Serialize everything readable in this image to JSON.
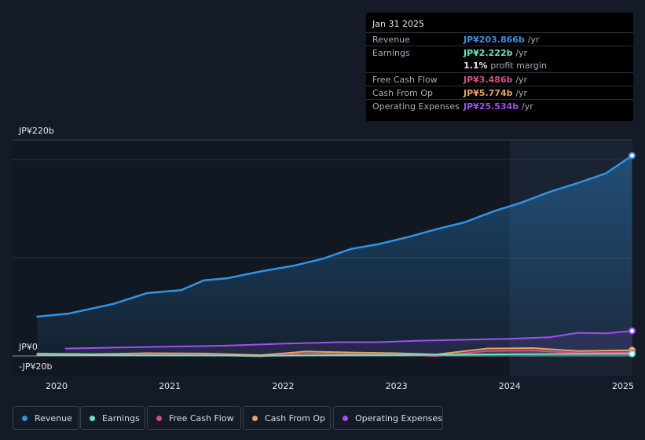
{
  "colors": {
    "revenue": "#2f94e6",
    "earnings": "#5ce8c9",
    "free_cash_flow": "#d24f86",
    "cash_from_op": "#e9a45c",
    "operating_expenses": "#a14ff0"
  },
  "tooltip": {
    "date": "Jan 31 2025",
    "rows": [
      {
        "label": "Revenue",
        "value": "JP¥203.866b",
        "unit": "/yr",
        "color": "#2f94e6"
      },
      {
        "label": "Earnings",
        "value": "JP¥2.222b",
        "unit": "/yr",
        "color": "#5ce8c9"
      },
      {
        "label": "",
        "value": "1.1%",
        "unit": "profit margin",
        "color": "#e6e8ec"
      },
      {
        "label": "Free Cash Flow",
        "value": "JP¥3.486b",
        "unit": "/yr",
        "color": "#d24f86"
      },
      {
        "label": "Cash From Op",
        "value": "JP¥5.774b",
        "unit": "/yr",
        "color": "#e9a45c"
      },
      {
        "label": "Operating Expenses",
        "value": "JP¥25.534b",
        "unit": "/yr",
        "color": "#a14ff0"
      }
    ]
  },
  "legend": [
    "Revenue",
    "Earnings",
    "Free Cash Flow",
    "Cash From Op",
    "Operating Expenses"
  ],
  "chart_data": {
    "type": "line",
    "title": "",
    "xlabel": "",
    "ylabel": "",
    "ylim": [
      -20,
      220
    ],
    "y_tick_labels": [
      "JP¥220b",
      "JP¥0",
      "-JP¥20b"
    ],
    "x_tick_labels": [
      "2020",
      "2021",
      "2022",
      "2023",
      "2024",
      "2025"
    ],
    "x_ticks": [
      2020.0,
      2021.0,
      2022.0,
      2023.0,
      2024.0,
      2025.0
    ],
    "highlight_from": 2024.0,
    "series": [
      {
        "name": "Revenue",
        "key": "revenue",
        "x": [
          2019.83,
          2020.1,
          2020.5,
          2020.8,
          2021.1,
          2021.3,
          2021.5,
          2021.8,
          2022.1,
          2022.35,
          2022.6,
          2022.85,
          2023.1,
          2023.35,
          2023.6,
          2023.85,
          2024.1,
          2024.35,
          2024.6,
          2024.85,
          2025.08
        ],
        "values": [
          40,
          43,
          53,
          64,
          67,
          77,
          79,
          86,
          92,
          99,
          109,
          114,
          121,
          129,
          136,
          147,
          156,
          167,
          176,
          186,
          204
        ]
      },
      {
        "name": "Earnings",
        "key": "earnings",
        "x": [
          2019.83,
          2020.3,
          2020.8,
          2021.3,
          2021.8,
          2022.2,
          2022.6,
          2023.0,
          2023.4,
          2023.8,
          2024.2,
          2024.6,
          2025.08
        ],
        "values": [
          1.0,
          0.8,
          0.6,
          0.5,
          0.2,
          0.5,
          0.9,
          1.0,
          1.2,
          1.5,
          1.8,
          2.0,
          2.2
        ]
      },
      {
        "name": "Free Cash Flow",
        "key": "free_cash_flow",
        "x": [
          2019.83,
          2020.3,
          2020.8,
          2021.3,
          2021.8,
          2022.2,
          2022.6,
          2023.0,
          2023.35,
          2023.8,
          2024.2,
          2024.6,
          2025.08
        ],
        "values": [
          1.5,
          0.5,
          1.5,
          1.2,
          -0.5,
          2.5,
          2.0,
          1.5,
          -0.2,
          5.0,
          5.5,
          3.0,
          3.5
        ]
      },
      {
        "name": "Cash From Op",
        "key": "cash_from_op",
        "x": [
          2019.83,
          2020.3,
          2020.8,
          2021.3,
          2021.8,
          2022.2,
          2022.6,
          2023.0,
          2023.35,
          2023.8,
          2024.2,
          2024.6,
          2025.08
        ],
        "values": [
          2.5,
          1.8,
          2.8,
          2.5,
          0.8,
          4.5,
          3.5,
          2.8,
          1.5,
          7.5,
          8.0,
          5.0,
          5.8
        ]
      },
      {
        "name": "Operating Expenses",
        "key": "operating_expenses",
        "x": [
          2020.08,
          2020.5,
          2021.0,
          2021.5,
          2022.0,
          2022.5,
          2022.85,
          2023.2,
          2023.6,
          2024.0,
          2024.35,
          2024.6,
          2024.85,
          2025.08
        ],
        "values": [
          7.5,
          8.5,
          9.5,
          10.5,
          12.5,
          14,
          14,
          15.5,
          16.5,
          17.5,
          19,
          23.5,
          23,
          25.5
        ]
      }
    ]
  }
}
